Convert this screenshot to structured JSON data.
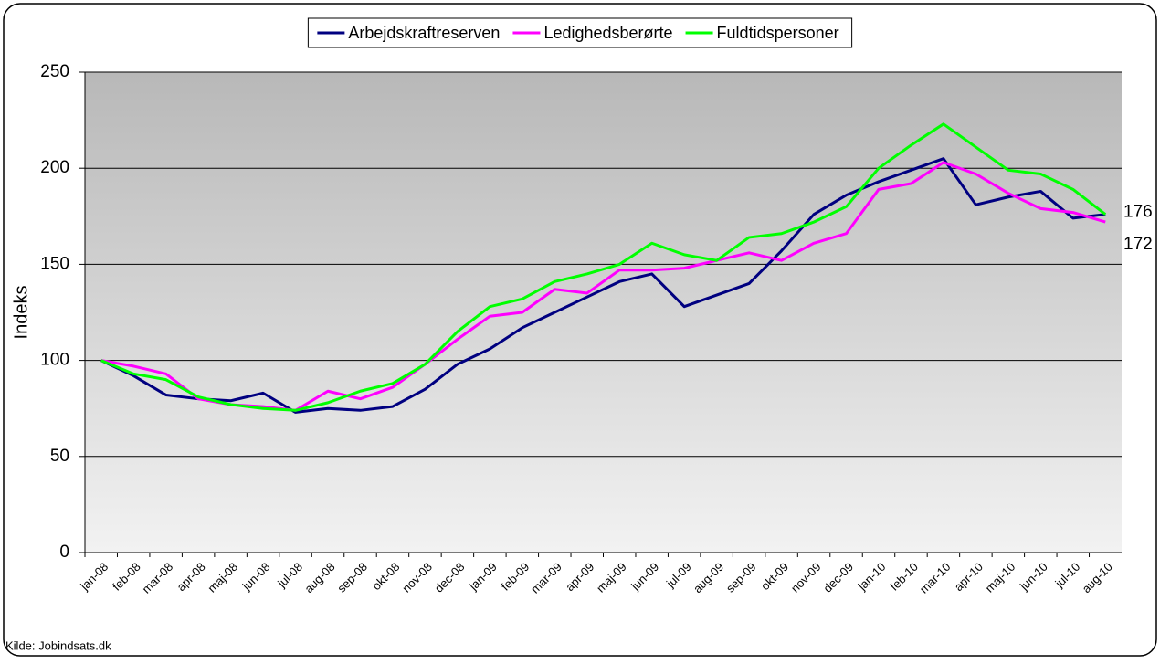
{
  "chart_data": {
    "type": "line",
    "y_label": "Indeks",
    "source": "Kilde: Jobindsats.dk",
    "categories": [
      "jan-08",
      "feb-08",
      "mar-08",
      "apr-08",
      "maj-08",
      "jun-08",
      "jul-08",
      "aug-08",
      "sep-08",
      "okt-08",
      "nov-08",
      "dec-08",
      "jan-09",
      "feb-09",
      "mar-09",
      "apr-09",
      "maj-09",
      "jun-09",
      "jul-09",
      "aug-09",
      "sep-09",
      "okt-09",
      "nov-09",
      "dec-09",
      "jan-10",
      "feb-10",
      "mar-10",
      "apr-10",
      "maj-10",
      "jun-10",
      "jul-10",
      "aug-10"
    ],
    "series": [
      {
        "name": "Arbejdskraftreserven",
        "color": "#000080",
        "values": [
          100,
          92,
          82,
          80,
          79,
          83,
          73,
          75,
          74,
          76,
          85,
          98,
          106,
          117,
          125,
          133,
          141,
          145,
          128,
          134,
          140,
          157,
          176,
          186,
          193,
          199,
          205,
          181,
          185,
          188,
          174,
          176
        ],
        "value_labels": [
          null,
          null,
          null,
          null,
          null,
          null,
          null,
          null,
          null,
          null,
          null,
          null,
          null,
          null,
          null,
          null,
          null,
          null,
          null,
          null,
          null,
          null,
          null,
          null,
          null,
          null,
          null,
          null,
          null,
          null,
          null,
          "176"
        ]
      },
      {
        "name": "Ledighedsberørte",
        "color": "#ff00ff",
        "values": [
          100,
          97,
          93,
          80,
          77,
          76,
          74,
          84,
          80,
          86,
          98,
          111,
          123,
          125,
          137,
          135,
          147,
          147,
          148,
          152,
          156,
          152,
          161,
          166,
          189,
          192,
          203,
          197,
          187,
          179,
          177,
          172
        ],
        "value_labels": [
          null,
          null,
          null,
          null,
          null,
          null,
          null,
          null,
          null,
          null,
          null,
          null,
          null,
          null,
          null,
          null,
          null,
          null,
          null,
          null,
          null,
          null,
          null,
          null,
          null,
          null,
          null,
          null,
          null,
          null,
          null,
          "172"
        ]
      },
      {
        "name": "Fuldtidspersoner",
        "color": "#00ff00",
        "values": [
          100,
          93,
          90,
          81,
          77,
          75,
          74,
          78,
          84,
          88,
          98,
          115,
          128,
          132,
          141,
          145,
          150,
          161,
          155,
          152,
          164,
          166,
          172,
          180,
          200,
          212,
          223,
          211,
          199,
          197,
          189,
          176
        ]
      }
    ],
    "ylim": [
      0,
      250
    ],
    "yticks": [
      0,
      50,
      100,
      150,
      200,
      250
    ],
    "grid": true,
    "legend": "top"
  }
}
